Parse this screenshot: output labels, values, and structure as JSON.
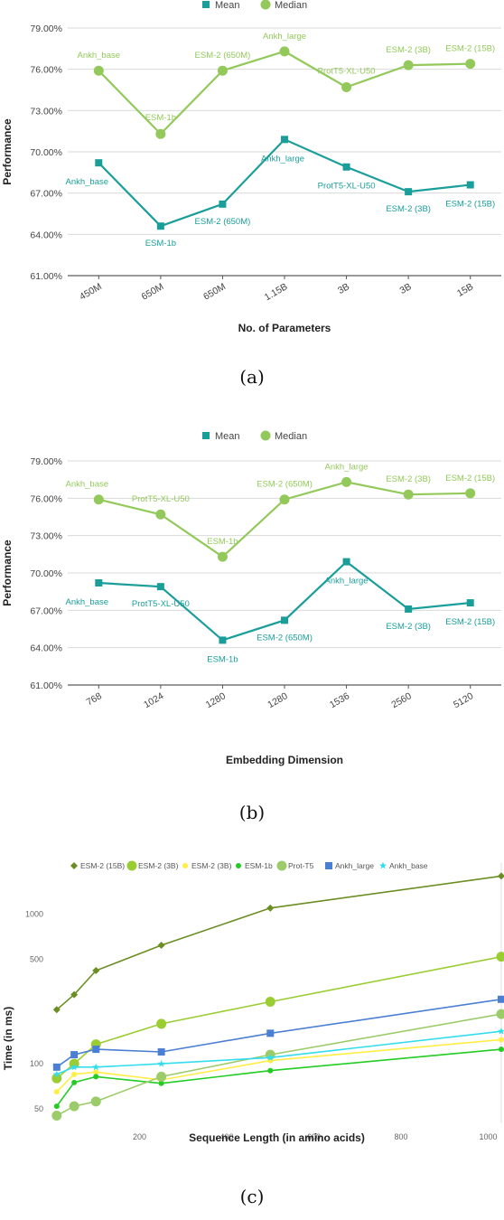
{
  "figure": {
    "captions": [
      "(a)",
      "(b)",
      "(c)"
    ]
  },
  "chart_data": [
    {
      "type": "line",
      "xlabel": "No. of Parameters",
      "ylabel": "Performance",
      "categories": [
        "450M",
        "650M",
        "650M",
        "1.15B",
        "3B",
        "3B",
        "15B"
      ],
      "yticks": [
        "61.00%",
        "64.00%",
        "67.00%",
        "70.00%",
        "73.00%",
        "76.00%",
        "79.00%"
      ],
      "ylim": [
        61,
        79
      ],
      "legend_position": "top",
      "series": [
        {
          "name": "Mean",
          "color": "#1a9e9a",
          "marker": "square",
          "values": [
            69.2,
            64.6,
            66.2,
            70.9,
            68.9,
            67.1,
            67.6
          ],
          "labels": [
            "Ankh_base",
            "ESM-1b",
            "ESM-2 (650M)",
            "Ankh_large",
            "ProtT5-XL-U50",
            "ESM-2 (3B)",
            "ESM-2 (15B)"
          ]
        },
        {
          "name": "Median",
          "color": "#93c95a",
          "marker": "circle",
          "values": [
            75.9,
            71.3,
            75.9,
            77.3,
            74.7,
            76.3,
            76.4
          ],
          "labels": [
            "Ankh_base",
            "ESM-1b",
            "ESM-2 (650M)",
            "Ankh_large",
            "ProtT5-XL-U50",
            "ESM-2 (3B)",
            "ESM-2 (15B)"
          ]
        }
      ]
    },
    {
      "type": "line",
      "xlabel": "Embedding Dimension",
      "ylabel": "Performance",
      "categories": [
        "768",
        "1024",
        "1280",
        "1280",
        "1536",
        "2560",
        "5120"
      ],
      "yticks": [
        "61.00%",
        "64.00%",
        "67.00%",
        "70.00%",
        "73.00%",
        "76.00%",
        "79.00%"
      ],
      "ylim": [
        61,
        79
      ],
      "legend_position": "top",
      "series": [
        {
          "name": "Mean",
          "color": "#1a9e9a",
          "marker": "square",
          "values": [
            69.2,
            68.9,
            64.6,
            66.2,
            70.9,
            67.1,
            67.6
          ],
          "labels": [
            "Ankh_base",
            "ProtT5-XL-U50",
            "ESM-1b",
            "ESM-2 (650M)",
            "Ankh_large",
            "ESM-2 (3B)",
            "ESM-2 (15B)"
          ]
        },
        {
          "name": "Median",
          "color": "#93c95a",
          "marker": "circle",
          "values": [
            75.9,
            74.7,
            71.3,
            75.9,
            77.3,
            76.3,
            76.4
          ],
          "labels": [
            "Ankh_base",
            "ProtT5-XL-U50",
            "ESM-1b",
            "ESM-2 (650M)",
            "Ankh_large",
            "ESM-2 (3B)",
            "ESM-2 (15B)"
          ]
        }
      ]
    },
    {
      "type": "line",
      "xlabel": "Sequence Length (in amino acids)",
      "ylabel": "Time (in ms)",
      "scale": "log",
      "xlim": [
        0,
        1030
      ],
      "ylim": [
        40,
        2200
      ],
      "xticks": [
        200,
        400,
        600,
        800,
        1000
      ],
      "yticks": [
        50,
        100,
        500,
        1000
      ],
      "legend_position": "top",
      "series": [
        {
          "name": "ESM-2 (15B)",
          "color": "#6b8e23",
          "marker": "diamond",
          "points": [
            [
              10,
              230
            ],
            [
              50,
              290
            ],
            [
              100,
              420
            ],
            [
              250,
              620
            ],
            [
              500,
              1100
            ],
            [
              1030,
              1800
            ]
          ]
        },
        {
          "name": "ESM-2 (3B)",
          "color": "#9acd32",
          "marker": "circle",
          "points": [
            [
              10,
              80
            ],
            [
              50,
              100
            ],
            [
              100,
              135
            ],
            [
              250,
              185
            ],
            [
              500,
              260
            ],
            [
              1030,
              520
            ]
          ]
        },
        {
          "name": "ESM-2 (3B)",
          "color": "#ffee44",
          "marker": "dot",
          "points": [
            [
              10,
              65
            ],
            [
              50,
              85
            ],
            [
              100,
              88
            ],
            [
              250,
              78
            ],
            [
              500,
              105
            ],
            [
              1030,
              145
            ]
          ]
        },
        {
          "name": "ESM-1b",
          "color": "#22cc22",
          "marker": "dot",
          "points": [
            [
              10,
              52
            ],
            [
              50,
              75
            ],
            [
              100,
              82
            ],
            [
              250,
              74
            ],
            [
              500,
              90
            ],
            [
              1030,
              125
            ]
          ]
        },
        {
          "name": "Prot-T5",
          "color": "#9ccc6a",
          "marker": "circle",
          "points": [
            [
              10,
              45
            ],
            [
              50,
              52
            ],
            [
              100,
              56
            ],
            [
              250,
              82
            ],
            [
              500,
              115
            ],
            [
              1030,
              215
            ]
          ]
        },
        {
          "name": "Ankh_large",
          "color": "#4a7fd4",
          "marker": "square",
          "points": [
            [
              10,
              95
            ],
            [
              50,
              115
            ],
            [
              100,
              125
            ],
            [
              250,
              120
            ],
            [
              500,
              160
            ],
            [
              1030,
              270
            ]
          ]
        },
        {
          "name": "Ankh_base",
          "color": "#33ddee",
          "marker": "star",
          "points": [
            [
              10,
              85
            ],
            [
              50,
              95
            ],
            [
              100,
              95
            ],
            [
              250,
              100
            ],
            [
              500,
              110
            ],
            [
              1030,
              165
            ]
          ]
        }
      ]
    }
  ]
}
